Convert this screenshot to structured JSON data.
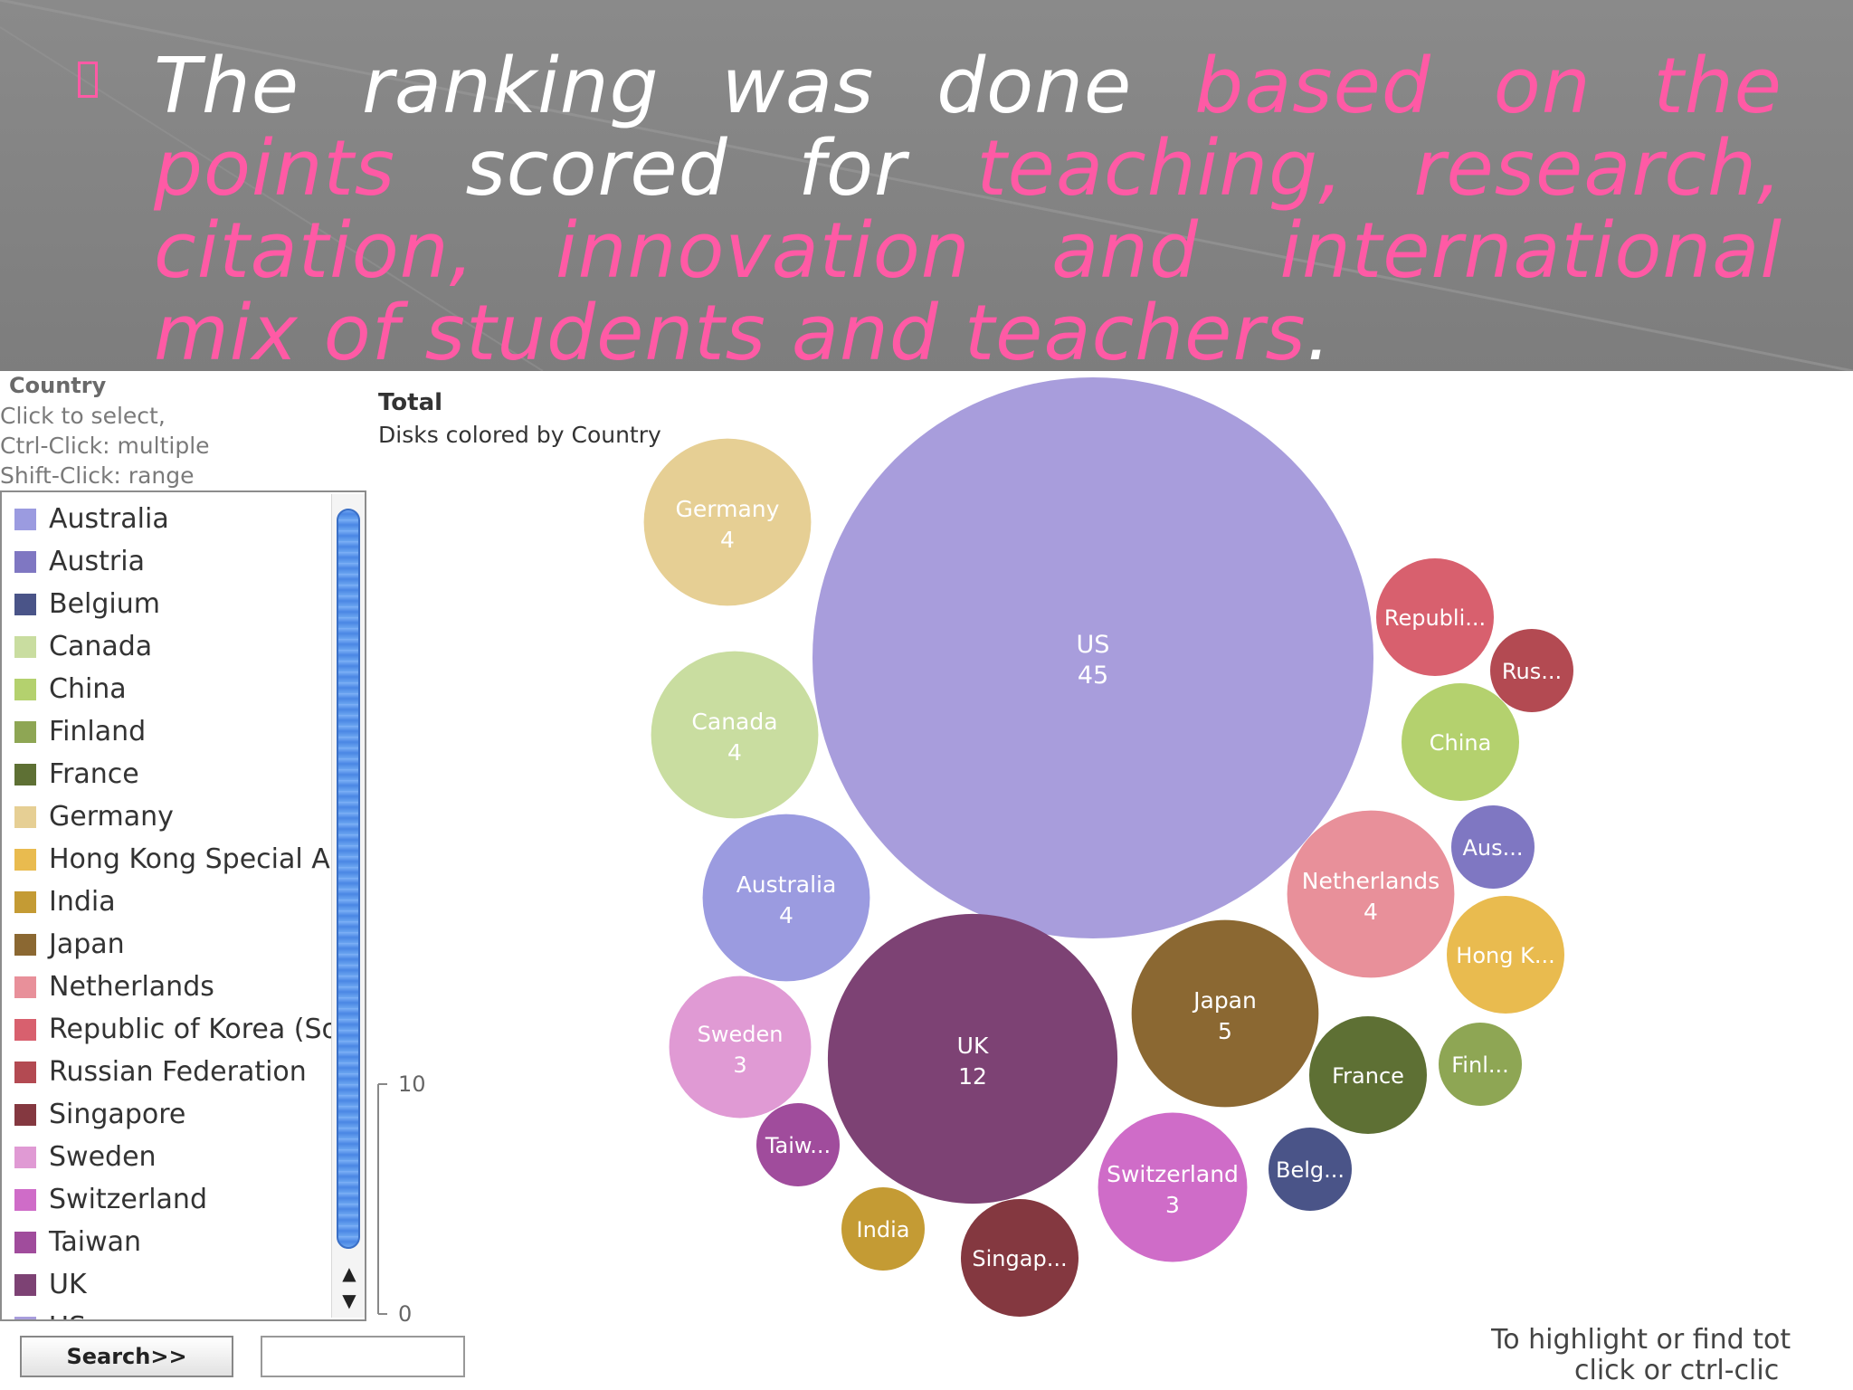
{
  "slide": {
    "bullet_icon": "square-bullet-icon",
    "headline_parts": [
      {
        "text": "The ranking was done ",
        "color": "#ffffff"
      },
      {
        "text": "based on the points",
        "color": "#ff5aa5"
      },
      {
        "text": " scored for ",
        "color": "#ffffff"
      },
      {
        "text": "teaching, research, citation, innovation and international mix of students and teachers",
        "color": "#ff5aa5"
      },
      {
        "text": ".",
        "color": "#ffffff"
      }
    ]
  },
  "panel": {
    "title": "Country",
    "hint_lines": [
      "Click to select,",
      "Ctrl-Click: multiple",
      "Shift-Click: range"
    ],
    "countries": [
      {
        "name": "Australia",
        "color": "#9b9be0"
      },
      {
        "name": "Austria",
        "color": "#7f77c2"
      },
      {
        "name": "Belgium",
        "color": "#4a5488"
      },
      {
        "name": "Canada",
        "color": "#c9dda0"
      },
      {
        "name": "China",
        "color": "#b4d16e"
      },
      {
        "name": "Finland",
        "color": "#8ea654"
      },
      {
        "name": "France",
        "color": "#5e7034"
      },
      {
        "name": "Germany",
        "color": "#e6cf94"
      },
      {
        "name": "Hong Kong Special A",
        "color": "#e9bb4f"
      },
      {
        "name": "India",
        "color": "#c49b34"
      },
      {
        "name": "Japan",
        "color": "#8b6832"
      },
      {
        "name": "Netherlands",
        "color": "#e8909a"
      },
      {
        "name": "Republic of Korea (So",
        "color": "#d8606e"
      },
      {
        "name": "Russian Federation",
        "color": "#b34a52"
      },
      {
        "name": "Singapore",
        "color": "#843840"
      },
      {
        "name": "Sweden",
        "color": "#e09ad4"
      },
      {
        "name": "Switzerland",
        "color": "#cf6cc8"
      },
      {
        "name": "Taiwan",
        "color": "#a04c9c"
      },
      {
        "name": "UK",
        "color": "#7d4274"
      },
      {
        "name": "US",
        "color": "#a89ddc"
      }
    ],
    "search_label": "Search>>",
    "search_value": ""
  },
  "chart_data": {
    "type": "bubble",
    "title": "Total",
    "subtitle": "Disks colored by Country",
    "size_legend_ticks": [
      "10",
      "0"
    ],
    "bubbles": [
      {
        "country": "US",
        "label": "US",
        "value": 45,
        "value_label": "45",
        "color": "#a89ddc"
      },
      {
        "country": "UK",
        "label": "UK",
        "value": 12,
        "value_label": "12",
        "color": "#7d4274"
      },
      {
        "country": "Japan",
        "label": "Japan",
        "value": 5,
        "value_label": "5",
        "color": "#8b6832"
      },
      {
        "country": "Germany",
        "label": "Germany",
        "value": 4,
        "value_label": "4",
        "color": "#e6cf94"
      },
      {
        "country": "Canada",
        "label": "Canada",
        "value": 4,
        "value_label": "4",
        "color": "#c9dda0"
      },
      {
        "country": "Australia",
        "label": "Australia",
        "value": 4,
        "value_label": "4",
        "color": "#9b9be0"
      },
      {
        "country": "Netherlands",
        "label": "Netherlands",
        "value": 4,
        "value_label": "4",
        "color": "#e8909a"
      },
      {
        "country": "Sweden",
        "label": "Sweden",
        "value": 3,
        "value_label": "3",
        "color": "#e09ad4"
      },
      {
        "country": "Switzerland",
        "label": "Switzerland",
        "value": 3,
        "value_label": "3",
        "color": "#cf6cc8"
      },
      {
        "country": "Republic of Korea",
        "label": "Republi...",
        "value": 2,
        "value_label": "",
        "color": "#d8606e"
      },
      {
        "country": "China",
        "label": "China",
        "value": 2,
        "value_label": "",
        "color": "#b4d16e"
      },
      {
        "country": "France",
        "label": "France",
        "value": 2,
        "value_label": "",
        "color": "#5e7034"
      },
      {
        "country": "Singapore",
        "label": "Singap...",
        "value": 2,
        "value_label": "",
        "color": "#843840"
      },
      {
        "country": "Hong Kong",
        "label": "Hong K...",
        "value": 2,
        "value_label": "",
        "color": "#e9bb4f"
      },
      {
        "country": "Russian Federation",
        "label": "Rus...",
        "value": 1,
        "value_label": "",
        "color": "#b34a52"
      },
      {
        "country": "Austria",
        "label": "Aus...",
        "value": 1,
        "value_label": "",
        "color": "#7f77c2"
      },
      {
        "country": "Finland",
        "label": "Finl...",
        "value": 1,
        "value_label": "",
        "color": "#8ea654"
      },
      {
        "country": "Belgium",
        "label": "Belg...",
        "value": 1,
        "value_label": "",
        "color": "#4a5488"
      },
      {
        "country": "Taiwan",
        "label": "Taiw...",
        "value": 1,
        "value_label": "",
        "color": "#a04c9c"
      },
      {
        "country": "India",
        "label": "India",
        "value": 1,
        "value_label": "",
        "color": "#c49b34"
      }
    ]
  },
  "hint": {
    "line1": "To highlight or find tot",
    "line2": "click or ctrl-clic"
  }
}
